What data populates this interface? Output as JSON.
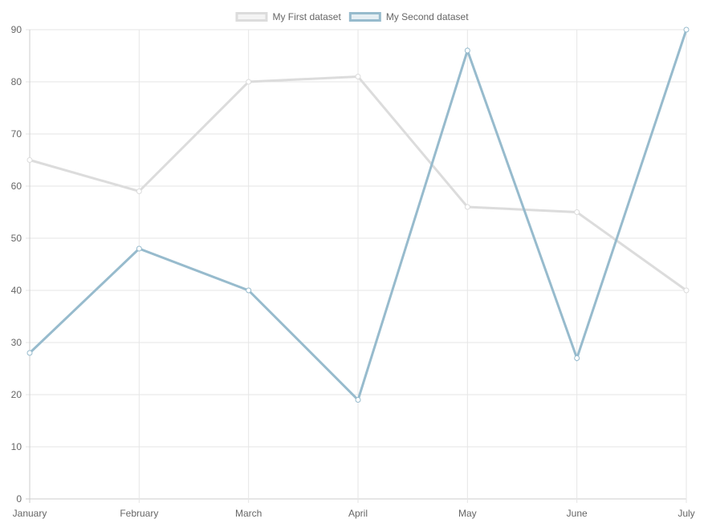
{
  "chart_data": {
    "type": "line",
    "categories": [
      "January",
      "February",
      "March",
      "April",
      "May",
      "June",
      "July"
    ],
    "series": [
      {
        "name": "My First dataset",
        "values": [
          65,
          59,
          80,
          81,
          56,
          55,
          40
        ],
        "color": "#dcdcdc",
        "fill": "#f4f4f4"
      },
      {
        "name": "My Second dataset",
        "values": [
          28,
          48,
          40,
          19,
          86,
          27,
          90
        ],
        "color": "#97bbcd",
        "fill": "#e6eff4"
      }
    ],
    "ylim": [
      0,
      90
    ],
    "yticks": [
      "0",
      "10",
      "20",
      "30",
      "40",
      "50",
      "60",
      "70",
      "80",
      "90"
    ],
    "grid": true,
    "legend_position": "top"
  }
}
